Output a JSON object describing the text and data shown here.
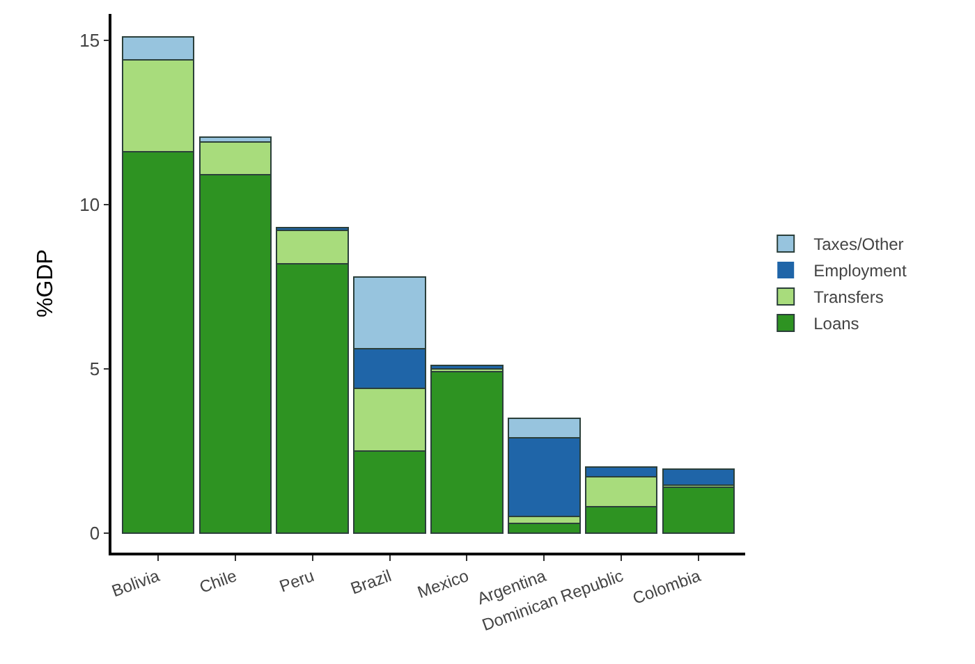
{
  "chart_data": {
    "type": "bar",
    "stacked": true,
    "ylabel": "%GDP",
    "categories": [
      "Bolivia",
      "Chile",
      "Peru",
      "Brazil",
      "Mexico",
      "Argentina",
      "Dominican Republic",
      "Colombia"
    ],
    "series": [
      {
        "name": "Loans",
        "color": "#2e9322",
        "values": [
          11.6,
          10.9,
          8.2,
          2.5,
          4.9,
          0.3,
          0.8,
          1.4
        ]
      },
      {
        "name": "Transfers",
        "color": "#a8dc7c",
        "values": [
          2.8,
          1.0,
          1.0,
          1.9,
          0.1,
          0.2,
          0.9,
          0.05
        ]
      },
      {
        "name": "Employment",
        "color": "#1f65a8",
        "values": [
          0,
          0,
          0.1,
          1.2,
          0.1,
          2.4,
          0.3,
          0.5
        ]
      },
      {
        "name": "Taxes/Other",
        "color": "#97c4de",
        "values": [
          0.7,
          0.15,
          0,
          2.2,
          0,
          0.6,
          0,
          0
        ]
      }
    ],
    "ylim": [
      -0.6,
      15.8
    ],
    "yticks": [
      0,
      5,
      10,
      15
    ],
    "grid": false,
    "legend": "right"
  }
}
